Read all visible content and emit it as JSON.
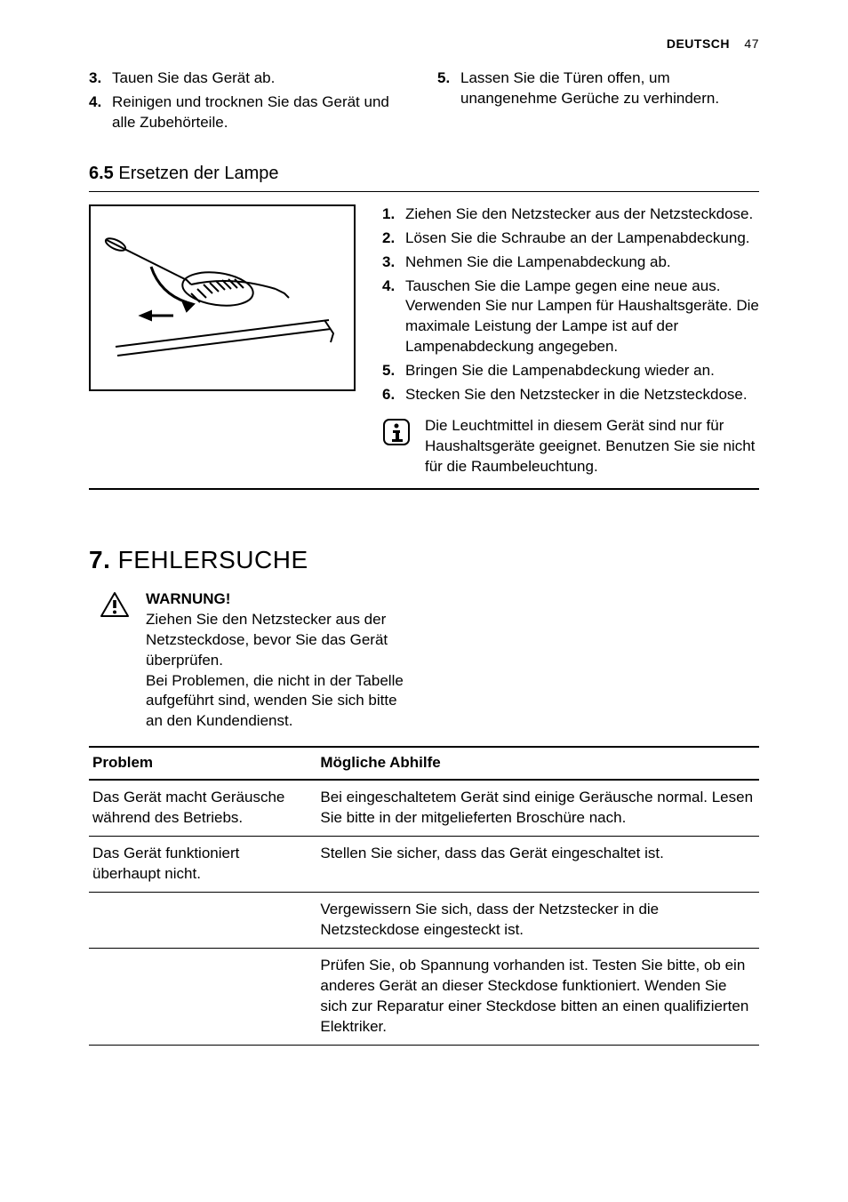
{
  "header": {
    "language": "DEUTSCH",
    "page": "47"
  },
  "top_list_left": [
    {
      "n": "3.",
      "t": "Tauen Sie das Gerät ab."
    },
    {
      "n": "4.",
      "t": "Reinigen und trocknen Sie das Gerät und alle Zubehörteile."
    }
  ],
  "top_list_right": [
    {
      "n": "5.",
      "t": "Lassen Sie die Türen offen, um unangenehme Gerüche zu verhindern."
    }
  ],
  "sub65": {
    "num": "6.5",
    "title": "Ersetzen der Lampe"
  },
  "lamp_steps": [
    {
      "n": "1.",
      "t": "Ziehen Sie den Netzstecker aus der Netzsteckdose."
    },
    {
      "n": "2.",
      "t": "Lösen Sie die Schraube an der Lampenabdeckung."
    },
    {
      "n": "3.",
      "t": "Nehmen Sie die Lampenabdeckung ab."
    },
    {
      "n": "4.",
      "t": "Tauschen Sie die Lampe gegen eine neue aus. Verwenden Sie nur Lampen für Haushaltsgeräte. Die maximale Leistung der Lampe ist auf der Lampenabdeckung angegeben."
    },
    {
      "n": "5.",
      "t": "Bringen Sie die Lampenabdeckung wieder an."
    },
    {
      "n": "6.",
      "t": "Stecken Sie den Netzstecker in die Netzsteckdose."
    }
  ],
  "info_note": "Die Leuchtmittel in diesem Gerät sind nur für Haushaltsgeräte geeignet. Benutzen Sie sie nicht für die Raumbeleuchtung.",
  "chapter7": {
    "num": "7.",
    "title": "FEHLERSUCHE"
  },
  "warning": {
    "title": "WARNUNG!",
    "body1": "Ziehen Sie den Netzstecker aus der Netzsteckdose, bevor Sie das Gerät überprüfen.",
    "body2": "Bei Problemen, die nicht in der Tabelle aufgeführt sind, wenden Sie sich bitte an den Kundendienst."
  },
  "table": {
    "headers": [
      "Problem",
      "Mögliche Abhilfe"
    ],
    "rows": [
      [
        "Das Gerät macht Geräusche während des Betriebs.",
        "Bei eingeschaltetem Gerät sind einige Geräusche normal. Lesen Sie bitte in der mitgelieferten Broschüre nach."
      ],
      [
        "Das Gerät funktioniert überhaupt nicht.",
        "Stellen Sie sicher, dass das Gerät eingeschaltet ist."
      ],
      [
        "",
        "Vergewissern Sie sich, dass der Netzstecker in die Netzsteckdose eingesteckt ist."
      ],
      [
        "",
        "Prüfen Sie, ob Spannung vorhanden ist. Testen Sie bitte, ob ein anderes Gerät an dieser Steckdose funktioniert. Wenden Sie sich zur Reparatur einer Steckdose bitten an einen qualifizierten Elektriker."
      ]
    ]
  }
}
